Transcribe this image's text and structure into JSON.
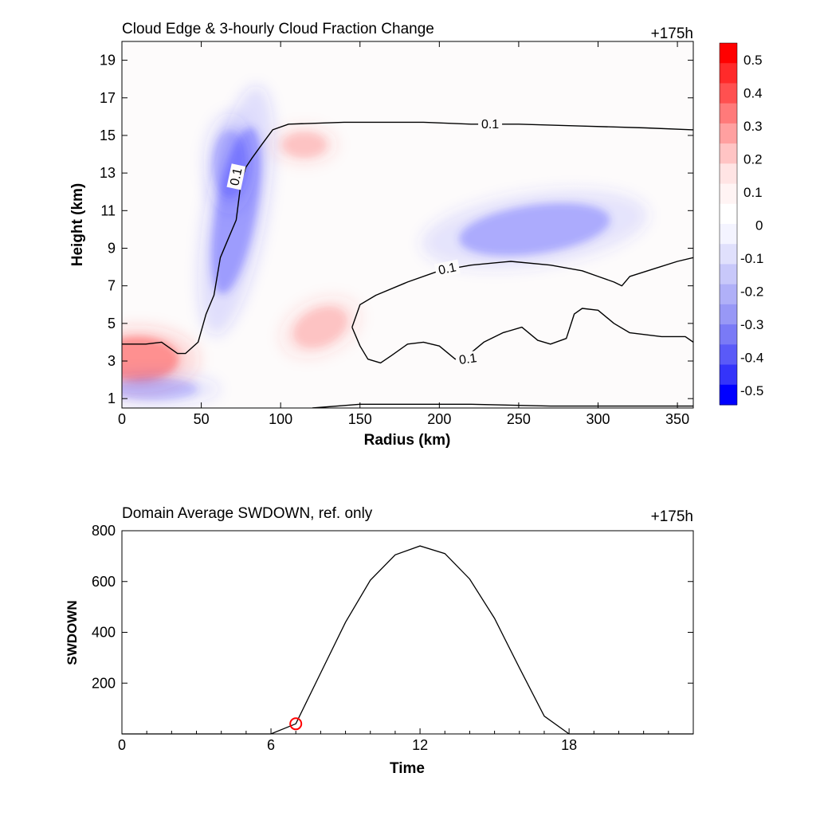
{
  "top_chart": {
    "title": "Cloud Edge & 3-hourly Cloud Fraction Change",
    "time_label": "+175h",
    "xlabel": "Radius (km)",
    "ylabel": "Height (km)",
    "x_ticks": [
      "0",
      "50",
      "100",
      "150",
      "200",
      "250",
      "300",
      "350"
    ],
    "y_ticks": [
      "1",
      "3",
      "5",
      "7",
      "9",
      "11",
      "13",
      "15",
      "17",
      "19"
    ],
    "contour_label": "0.1"
  },
  "bottom_chart": {
    "title": "Domain Average SWDOWN, ref. only",
    "time_label": "+175h",
    "xlabel": "Time",
    "ylabel": "SWDOWN",
    "x_ticks": [
      "0",
      "6",
      "12",
      "18"
    ],
    "y_ticks": [
      "200",
      "400",
      "600",
      "800"
    ]
  },
  "colorbar": {
    "labels": [
      "0.5",
      "0.4",
      "0.3",
      "0.2",
      "0.1",
      "0",
      "-0.1",
      "-0.2",
      "-0.3",
      "-0.4",
      "-0.5"
    ],
    "colors": [
      "#ff0000",
      "#ff2a2a",
      "#ff5050",
      "#ff7a7a",
      "#ffa0a0",
      "#ffc4c4",
      "#ffe4e4",
      "#fff4f4",
      "#ffffff",
      "#f4f4ff",
      "#e0e0fc",
      "#c8c8fa",
      "#b0b0f8",
      "#9898f6",
      "#7a7af6",
      "#5a5af8",
      "#3434fa",
      "#0000ff"
    ]
  },
  "chart_data": [
    {
      "type": "heatmap",
      "title": "Cloud Edge & 3-hourly Cloud Fraction Change",
      "xlabel": "Radius (km)",
      "ylabel": "Height (km)",
      "xlim": [
        0,
        360
      ],
      "ylim": [
        0.5,
        20
      ],
      "color_range": [
        -0.5,
        0.5
      ],
      "grid": false,
      "features": [
        {
          "kind": "positive",
          "x": 10,
          "y": 3.1,
          "value": 0.3
        },
        {
          "kind": "negative",
          "x": 72,
          "y": 11,
          "value": -0.25
        },
        {
          "kind": "negative",
          "x": 68,
          "y": 13.5,
          "value": -0.15
        },
        {
          "kind": "negative",
          "x": 260,
          "y": 10,
          "value": -0.2
        },
        {
          "kind": "positive",
          "x": 115,
          "y": 14.5,
          "value": 0.08
        },
        {
          "kind": "positive",
          "x": 125,
          "y": 4.8,
          "value": 0.08
        },
        {
          "kind": "negative",
          "x": 20,
          "y": 1.5,
          "value": -0.1
        }
      ],
      "contours": [
        {
          "level": 0.1,
          "points": [
            [
              0,
              3.9
            ],
            [
              15,
              3.9
            ],
            [
              25,
              4.0
            ],
            [
              35,
              3.4
            ],
            [
              40,
              3.4
            ],
            [
              48,
              4.0
            ],
            [
              53,
              5.5
            ],
            [
              58,
              6.5
            ],
            [
              62,
              8.5
            ],
            [
              67,
              9.5
            ],
            [
              72,
              10.5
            ],
            [
              75,
              12.5
            ],
            [
              78,
              13.3
            ],
            [
              82,
              13.8
            ],
            [
              88,
              14.5
            ],
            [
              95,
              15.3
            ],
            [
              105,
              15.6
            ],
            [
              140,
              15.7
            ],
            [
              190,
              15.7
            ],
            [
              220,
              15.6
            ],
            [
              250,
              15.6
            ],
            [
              290,
              15.5
            ],
            [
              330,
              15.4
            ],
            [
              360,
              15.3
            ]
          ]
        },
        {
          "level": 0.1,
          "points": [
            [
              145,
              4.8
            ],
            [
              150,
              6.0
            ],
            [
              160,
              6.5
            ],
            [
              180,
              7.2
            ],
            [
              200,
              7.8
            ],
            [
              220,
              8.1
            ],
            [
              245,
              8.3
            ],
            [
              270,
              8.1
            ],
            [
              290,
              7.8
            ],
            [
              300,
              7.5
            ],
            [
              310,
              7.2
            ],
            [
              315,
              7.0
            ],
            [
              320,
              7.5
            ],
            [
              335,
              7.9
            ],
            [
              350,
              8.3
            ],
            [
              360,
              8.5
            ]
          ]
        },
        {
          "level": 0.1,
          "points": [
            [
              145,
              4.8
            ],
            [
              150,
              3.8
            ],
            [
              155,
              3.1
            ],
            [
              163,
              2.9
            ],
            [
              170,
              3.3
            ],
            [
              180,
              3.9
            ],
            [
              190,
              4.0
            ],
            [
              200,
              3.8
            ],
            [
              210,
              3.1
            ],
            [
              218,
              3.3
            ],
            [
              228,
              4.0
            ],
            [
              240,
              4.5
            ],
            [
              252,
              4.8
            ],
            [
              262,
              4.1
            ],
            [
              270,
              3.9
            ],
            [
              280,
              4.2
            ],
            [
              285,
              5.5
            ],
            [
              290,
              5.8
            ],
            [
              300,
              5.7
            ],
            [
              310,
              5.0
            ],
            [
              320,
              4.5
            ],
            [
              340,
              4.3
            ],
            [
              355,
              4.3
            ],
            [
              360,
              4.0
            ]
          ]
        },
        {
          "level": 0.1,
          "points": [
            [
              120,
              0.5
            ],
            [
              150,
              0.7
            ],
            [
              220,
              0.7
            ],
            [
              270,
              0.6
            ],
            [
              320,
              0.6
            ],
            [
              360,
              0.6
            ]
          ]
        }
      ]
    },
    {
      "type": "line",
      "title": "Domain Average SWDOWN, ref. only",
      "xlabel": "Time",
      "ylabel": "SWDOWN",
      "xlim": [
        0,
        23
      ],
      "ylim": [
        0,
        800
      ],
      "grid": false,
      "x": [
        0,
        1,
        2,
        3,
        4,
        5,
        6,
        7,
        8,
        9,
        10,
        11,
        12,
        13,
        14,
        15,
        16,
        17,
        18,
        19,
        20,
        21,
        22,
        23
      ],
      "values": [
        0,
        0,
        0,
        0,
        0,
        0,
        0,
        40,
        240,
        440,
        605,
        705,
        740,
        710,
        610,
        455,
        260,
        70,
        0,
        0,
        0,
        0,
        0,
        0
      ],
      "marker": {
        "x": 7,
        "y": 40,
        "color": "#ff0000"
      }
    }
  ]
}
